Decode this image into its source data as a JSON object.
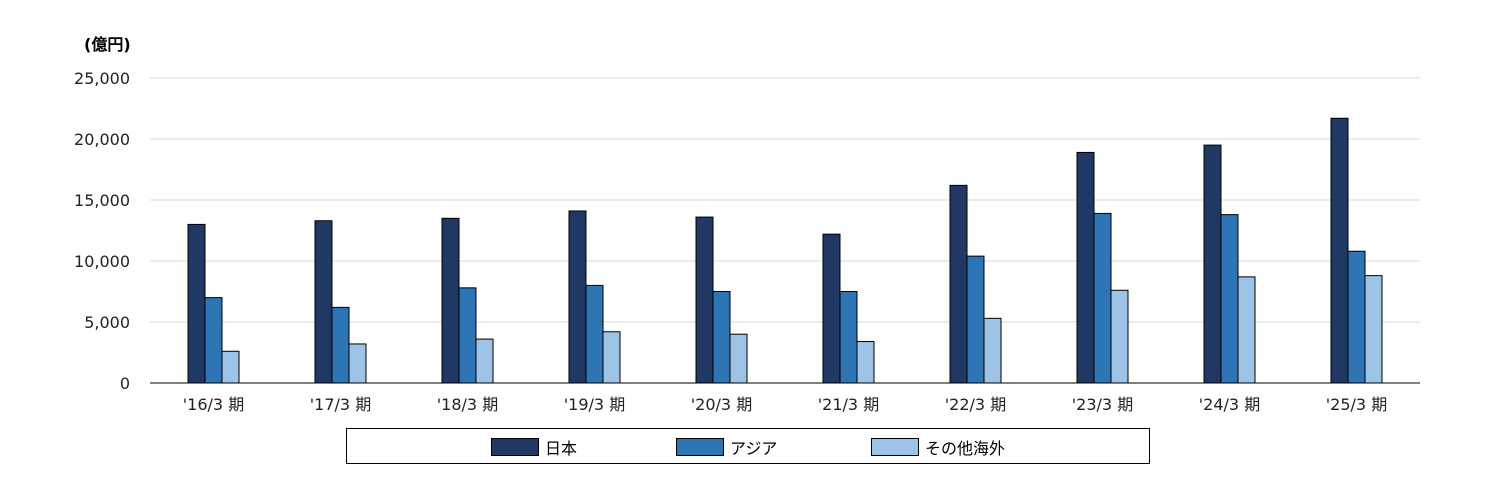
{
  "chart_data": {
    "type": "bar",
    "unit_label": "(億円)",
    "categories": [
      "'16/3 期",
      "'17/3 期",
      "'18/3 期",
      "'19/3 期",
      "'20/3 期",
      "'21/3 期",
      "'22/3 期",
      "'23/3 期",
      "'24/3 期",
      "'25/3 期"
    ],
    "series": [
      {
        "name": "日本",
        "color": "#1f3864",
        "values": [
          13000,
          13300,
          13500,
          14100,
          13600,
          12200,
          16200,
          18900,
          19500,
          21700
        ]
      },
      {
        "name": "アジア",
        "color": "#2e75b6",
        "values": [
          7000,
          6200,
          7800,
          8000,
          7500,
          7500,
          10400,
          13900,
          13800,
          10800
        ]
      },
      {
        "name": "その他海外",
        "color": "#9dc3e6",
        "values": [
          2600,
          3200,
          3600,
          4200,
          4000,
          3400,
          5300,
          7600,
          8700,
          8800
        ]
      }
    ],
    "y_ticks": [
      "0",
      "5,000",
      "10,000",
      "15,000",
      "20,000",
      "25,000"
    ],
    "ylim": [
      0,
      25000
    ],
    "grid": true,
    "legend_position": "bottom"
  }
}
